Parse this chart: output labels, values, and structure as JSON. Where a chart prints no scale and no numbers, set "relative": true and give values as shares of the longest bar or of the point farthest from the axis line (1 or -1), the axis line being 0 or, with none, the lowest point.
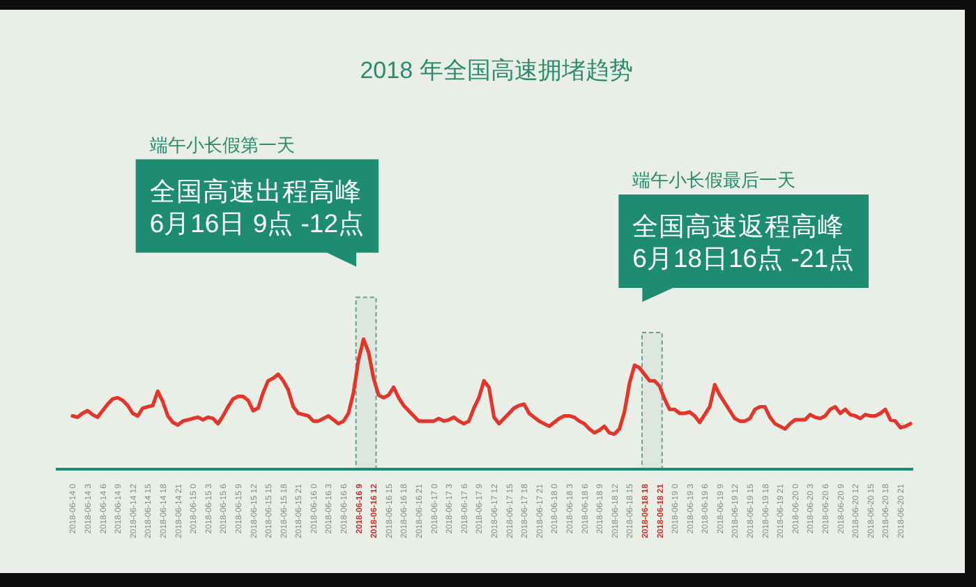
{
  "chart_data": {
    "type": "line",
    "title": "2018 年全国高速拥堵趋势",
    "relative": true,
    "categories": [
      "2018-06-14 0",
      null,
      null,
      "2018-06-14 3",
      null,
      null,
      "2018-06-14 6",
      null,
      null,
      "2018-06-14 9",
      null,
      null,
      "2018-06-14 12",
      null,
      null,
      "2018-06-14 15",
      null,
      null,
      "2018-06-14 18",
      null,
      null,
      "2018-06-14 21",
      null,
      null,
      "2018-06-15 0",
      null,
      null,
      "2018-06-15 3",
      null,
      null,
      "2018-06-15 6",
      null,
      null,
      "2018-06-15 9",
      null,
      null,
      "2018-06-15 12",
      null,
      null,
      "2018-06-15 15",
      null,
      null,
      "2018-06-15 18",
      null,
      null,
      "2018-06-15 21",
      null,
      null,
      "2018-06-16 0",
      null,
      null,
      "2018-06-16 3",
      null,
      null,
      "2018-06-16 6",
      null,
      null,
      "2018-06-16 9",
      null,
      null,
      "2018-06-16 12",
      null,
      null,
      "2018-06-16 15",
      null,
      null,
      "2018-06-16 18",
      null,
      null,
      "2018-06-16 21",
      null,
      null,
      "2018-06-17 0",
      null,
      null,
      "2018-06-17 3",
      null,
      null,
      "2018-06-17 6",
      null,
      null,
      "2018-06-17 9",
      null,
      null,
      "2018-06-17 12",
      null,
      null,
      "2018-06-17 15",
      null,
      null,
      "2018-06-17 18",
      null,
      null,
      "2018-06-17 21",
      null,
      null,
      "2018-06-18 0",
      null,
      null,
      "2018-06-18 3",
      null,
      null,
      "2018-06-18 6",
      null,
      null,
      "2018-06-18 9",
      null,
      null,
      "2018-06-18 12",
      null,
      null,
      "2018-06-18 15",
      null,
      null,
      "2018-06-18 18",
      null,
      null,
      "2018-06-18 21",
      null,
      null,
      "2018-06-19 0",
      null,
      null,
      "2018-06-19 3",
      null,
      null,
      "2018-06-19 6",
      null,
      null,
      "2018-06-19 9",
      null,
      null,
      "2018-06-19 12",
      null,
      null,
      "2018-06-19 15",
      null,
      null,
      "2018-06-19 18",
      null,
      null,
      "2018-06-19 21",
      null,
      null,
      "2018-06-20 0",
      null,
      null,
      "2018-06-20 3",
      null,
      null,
      "2018-06-20 6",
      null,
      null,
      "2018-06-20 9",
      null,
      null,
      "2018-06-20 12",
      null,
      null,
      "2018-06-20 15",
      null,
      null,
      "2018-06-20 18",
      null,
      null,
      "2018-06-20 21",
      null,
      null
    ],
    "series": [
      {
        "color": "#e0362c",
        "values": [
          0.41,
          0.4,
          0.43,
          0.45,
          0.42,
          0.4,
          0.45,
          0.5,
          0.54,
          0.55,
          0.53,
          0.49,
          0.43,
          0.41,
          0.47,
          0.48,
          0.49,
          0.6,
          0.52,
          0.41,
          0.36,
          0.34,
          0.37,
          0.38,
          0.39,
          0.4,
          0.38,
          0.4,
          0.39,
          0.35,
          0.41,
          0.48,
          0.54,
          0.56,
          0.56,
          0.53,
          0.45,
          0.47,
          0.59,
          0.68,
          0.7,
          0.73,
          0.68,
          0.61,
          0.48,
          0.43,
          0.42,
          0.41,
          0.37,
          0.37,
          0.39,
          0.41,
          0.38,
          0.35,
          0.37,
          0.43,
          0.59,
          0.84,
          1.0,
          0.9,
          0.7,
          0.57,
          0.55,
          0.57,
          0.63,
          0.55,
          0.49,
          0.45,
          0.41,
          0.37,
          0.37,
          0.37,
          0.37,
          0.39,
          0.37,
          0.38,
          0.4,
          0.37,
          0.35,
          0.37,
          0.47,
          0.55,
          0.68,
          0.63,
          0.4,
          0.35,
          0.39,
          0.43,
          0.47,
          0.49,
          0.5,
          0.43,
          0.4,
          0.37,
          0.35,
          0.33,
          0.36,
          0.39,
          0.41,
          0.41,
          0.4,
          0.37,
          0.35,
          0.31,
          0.28,
          0.3,
          0.33,
          0.28,
          0.27,
          0.31,
          0.44,
          0.66,
          0.8,
          0.78,
          0.73,
          0.68,
          0.68,
          0.64,
          0.54,
          0.46,
          0.46,
          0.43,
          0.43,
          0.44,
          0.41,
          0.36,
          0.42,
          0.48,
          0.65,
          0.57,
          0.51,
          0.45,
          0.39,
          0.37,
          0.37,
          0.39,
          0.46,
          0.48,
          0.48,
          0.4,
          0.35,
          0.33,
          0.31,
          0.35,
          0.38,
          0.38,
          0.38,
          0.42,
          0.4,
          0.39,
          0.41,
          0.46,
          0.48,
          0.43,
          0.46,
          0.42,
          0.41,
          0.39,
          0.42,
          0.41,
          0.41,
          0.43,
          0.46,
          0.38,
          0.37,
          0.32,
          0.33,
          0.35
        ]
      }
    ],
    "bands": [
      {
        "axis": "x",
        "from": "2018-06-16 9",
        "to": "2018-06-16 12",
        "color": "#6a9c8f"
      },
      {
        "axis": "x",
        "from": "2018-06-18 18",
        "to": "2018-06-18 21",
        "color": "#6a9c8f"
      }
    ],
    "annotations": [
      "端午小长假第一天",
      "全国高速出程高峰\n6月16日 9点 -12点",
      "端午小长假最后一天",
      "全国高速返程高峰\n6月18日16点 -21点"
    ]
  }
}
